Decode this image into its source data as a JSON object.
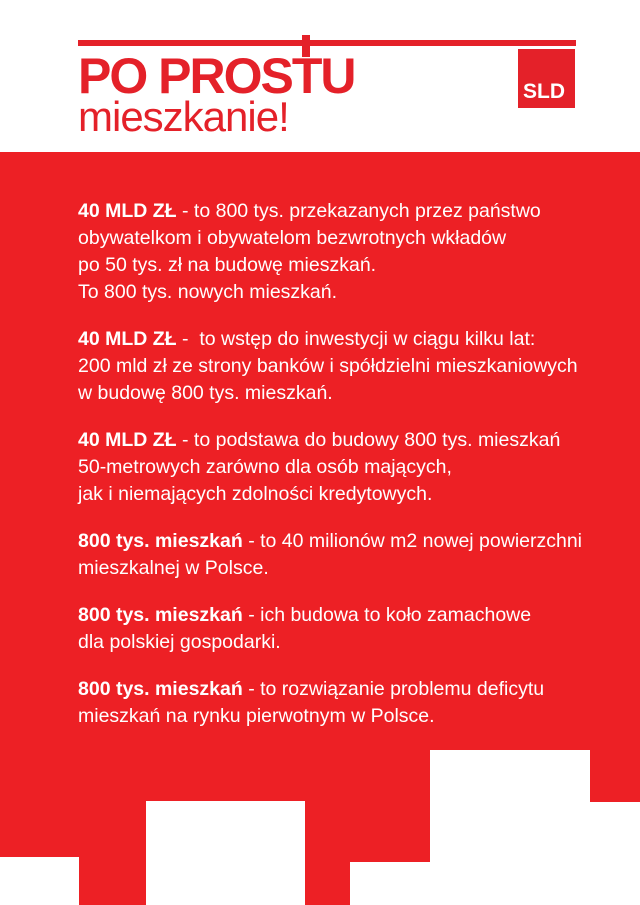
{
  "page": {
    "background": "#ffffff",
    "brand_red": "#e42129",
    "section_red": "#ed2025",
    "text_white": "#ffffff"
  },
  "header": {
    "headline": {
      "pre": "PO PROS",
      "t": "T",
      "post": "U"
    },
    "subline": "mieszkanie!",
    "logo": {
      "text": "SLD"
    }
  },
  "content": {
    "paragraphs": [
      {
        "lead": "40 MLD ZŁ",
        "rest": " - to 800 tys. przekazanych przez państwo\nobywatelkom i obywatelom bezwrotnych wkładów\npo 50 tys. zł na budowę mieszkań.\nTo 800 tys. nowych mieszkań."
      },
      {
        "lead": "40 MLD ZŁ",
        "rest": " -  to wstęp do inwestycji w ciągu kilku lat:\n200 mld zł ze strony banków i spółdzielni mieszkaniowych\nw budowę 800 tys. mieszkań."
      },
      {
        "lead": "40 MLD ZŁ",
        "rest": " - to podstawa do budowy 800 tys. mieszkań\n50-metrowych zarówno dla osób mających,\njak i niemających zdolności kredytowych."
      },
      {
        "lead": "800 tys. mieszkań",
        "rest": " - to 40 milionów m2 nowej powierzchni\nmieszkalnej w Polsce."
      },
      {
        "lead": "800 tys. mieszkań",
        "rest": " - ich budowa to koło zamachowe\ndla polskiej gospodarki."
      },
      {
        "lead": "800 tys. mieszkań",
        "rest": " - to rozwiązanie problemu deficytu\nmieszkań na rynku pierwotnym w Polsce."
      }
    ]
  }
}
